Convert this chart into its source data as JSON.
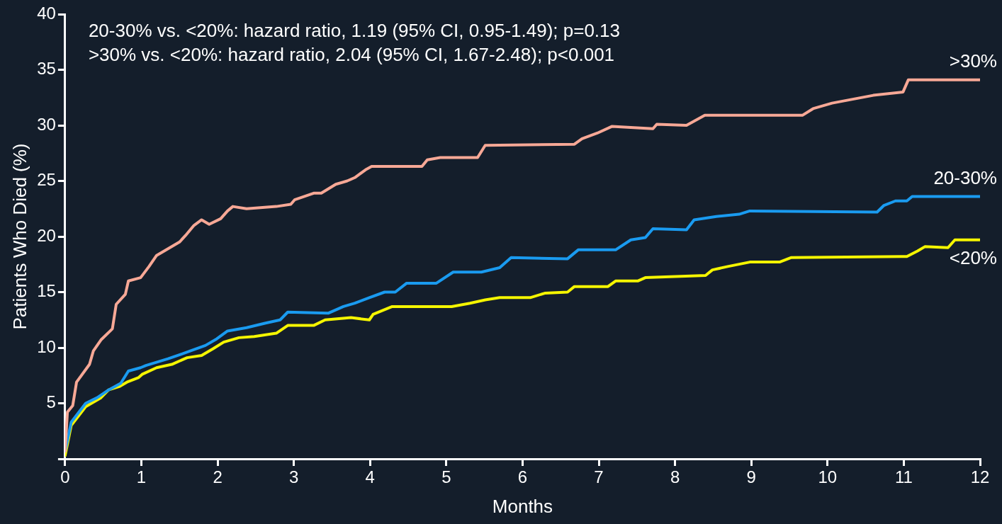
{
  "chart_data": {
    "type": "line",
    "xlabel": "Months",
    "ylabel": "Patients Who Died (%)",
    "annotations": [
      "20-30% vs. <20%: hazard ratio, 1.19 (95% CI, 0.95-1.49); p=0.13",
      ">30% vs. <20%: hazard ratio, 2.04 (95% CI, 1.67-2.48); p<0.001"
    ],
    "xlim": [
      0,
      12
    ],
    "xticks": [
      0,
      1,
      2,
      3,
      4,
      5,
      6,
      7,
      8,
      9,
      10,
      11,
      12
    ],
    "ylim": [
      0,
      40
    ],
    "yticks": [
      {
        "value": 0,
        "label": null
      },
      5,
      10,
      15,
      20,
      25,
      30,
      35,
      40
    ],
    "grid": false,
    "legend": false,
    "marker": "none",
    "line_style": "solid",
    "series": [
      {
        "name": ">30%",
        "color": "#f7a896",
        "x": [
          0,
          0.03,
          0.1,
          0.15,
          0.32,
          0.37,
          0.47,
          0.62,
          0.67,
          0.79,
          0.83,
          0.99,
          1.1,
          1.2,
          1.35,
          1.5,
          1.58,
          1.69,
          1.79,
          1.89,
          2.04,
          2.13,
          2.2,
          2.38,
          2.77,
          2.96,
          3.01,
          3.26,
          3.36,
          3.55,
          3.7,
          3.8,
          3.94,
          4.02,
          4.68,
          4.75,
          4.92,
          5.41,
          5.51,
          6.68,
          6.78,
          6.98,
          7.17,
          7.71,
          7.76,
          8.15,
          8.39,
          9.67,
          9.81,
          10.06,
          10.6,
          10.99,
          11.06,
          12
        ],
        "values": [
          0.7,
          4.2,
          4.8,
          6.9,
          8.5,
          9.7,
          10.7,
          11.7,
          13.9,
          14.8,
          16,
          16.3,
          17.3,
          18.3,
          18.9,
          19.5,
          20.1,
          21,
          21.5,
          21.1,
          21.6,
          22.3,
          22.7,
          22.5,
          22.7,
          22.9,
          23.3,
          23.9,
          23.9,
          24.7,
          25,
          25.3,
          26,
          26.3,
          26.3,
          26.9,
          27.1,
          27.1,
          28.2,
          28.3,
          28.8,
          29.3,
          29.9,
          29.7,
          30.1,
          30,
          30.9,
          30.9,
          31.5,
          32,
          32.7,
          33,
          34.1,
          34.1
        ]
      },
      {
        "name": "20-30%",
        "color": "#1a9bf0",
        "x": [
          0,
          0.08,
          0.27,
          0.42,
          0.57,
          0.73,
          0.83,
          0.99,
          1.06,
          1.35,
          1.64,
          1.84,
          1.99,
          2.13,
          2.38,
          2.62,
          2.82,
          2.92,
          3.45,
          3.65,
          3.8,
          3.99,
          4.19,
          4.33,
          4.48,
          4.87,
          5.09,
          5.46,
          5.7,
          5.85,
          6.59,
          6.73,
          7.22,
          7.42,
          7.61,
          7.71,
          8.15,
          8.25,
          8.54,
          8.84,
          8.98,
          10.65,
          10.74,
          10.89,
          11.04,
          11.11,
          12
        ],
        "values": [
          0.7,
          3.3,
          5.0,
          5.5,
          6.2,
          6.8,
          7.9,
          8.2,
          8.4,
          9.0,
          9.7,
          10.2,
          10.8,
          11.5,
          11.8,
          12.2,
          12.5,
          13.2,
          13.1,
          13.7,
          14.0,
          14.5,
          15.0,
          15.0,
          15.8,
          15.8,
          16.8,
          16.8,
          17.2,
          18.1,
          18.0,
          18.8,
          18.8,
          19.7,
          19.9,
          20.7,
          20.6,
          21.5,
          21.8,
          22.0,
          22.3,
          22.2,
          22.8,
          23.2,
          23.2,
          23.6,
          23.6
        ]
      },
      {
        "name": "<20%",
        "color": "#f5f500",
        "x": [
          0,
          0.08,
          0.27,
          0.47,
          0.57,
          0.71,
          0.81,
          0.96,
          1.01,
          1.2,
          1.4,
          1.6,
          1.79,
          1.94,
          2.08,
          2.28,
          2.48,
          2.77,
          2.92,
          3.26,
          3.41,
          3.75,
          3.99,
          4.04,
          4.29,
          5.07,
          5.31,
          5.51,
          5.7,
          6.1,
          6.29,
          6.59,
          6.68,
          7.12,
          7.22,
          7.51,
          7.61,
          8.4,
          8.49,
          8.69,
          8.98,
          9.37,
          9.52,
          11.04,
          11.18,
          11.28,
          11.58,
          11.67,
          12
        ],
        "values": [
          0.3,
          3.0,
          4.7,
          5.5,
          6.2,
          6.5,
          6.9,
          7.3,
          7.6,
          8.2,
          8.5,
          9.1,
          9.3,
          9.9,
          10.5,
          10.9,
          11.0,
          11.3,
          12.0,
          12.0,
          12.5,
          12.7,
          12.5,
          13.0,
          13.7,
          13.7,
          14.0,
          14.3,
          14.5,
          14.5,
          14.9,
          15.0,
          15.5,
          15.5,
          16.0,
          16.0,
          16.3,
          16.5,
          17.0,
          17.3,
          17.7,
          17.7,
          18.1,
          18.2,
          18.7,
          19.1,
          19.0,
          19.7,
          19.7
        ]
      }
    ]
  }
}
